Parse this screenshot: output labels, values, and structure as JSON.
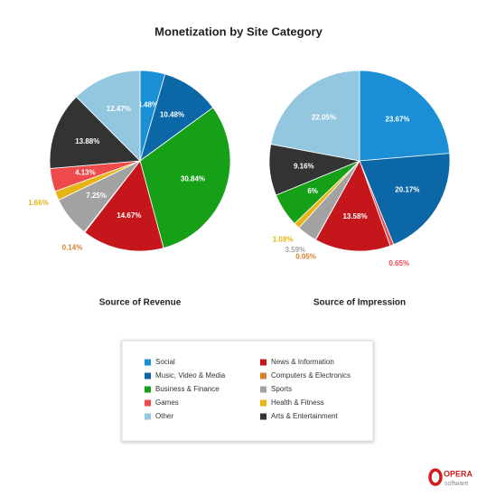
{
  "title": "Monetization by Site Category",
  "legend": [
    {
      "name": "Social",
      "color": "#1a8fd6"
    },
    {
      "name": "Music, Video & Media",
      "color": "#0b67a6"
    },
    {
      "name": "Business & Finance",
      "color": "#16a018"
    },
    {
      "name": "Games",
      "color": "#ee4a4c"
    },
    {
      "name": "Other",
      "color": "#93c6df"
    },
    {
      "name": "News & Information",
      "color": "#c5161c"
    },
    {
      "name": "Computers & Electronics",
      "color": "#d8812c"
    },
    {
      "name": "Sports",
      "color": "#a2a2a2"
    },
    {
      "name": "Health & Fitness",
      "color": "#e6b415"
    },
    {
      "name": "Arts & Entertainment",
      "color": "#333333"
    }
  ],
  "chart_data": [
    {
      "type": "pie",
      "subtitle": "Source of Revenue",
      "categories": [
        "Social",
        "Music, Video & Media",
        "Business & Finance",
        "News & Information",
        "Computers & Electronics",
        "Sports",
        "Health & Fitness",
        "Games",
        "Arts & Entertainment",
        "Other"
      ],
      "values": [
        4.48,
        10.48,
        30.84,
        14.67,
        0.14,
        7.25,
        1.66,
        4.13,
        13.88,
        12.47
      ],
      "value_labels": [
        "4.48%",
        "10.48%",
        "30.84%",
        "14.67%",
        "0.14%",
        "7.25%",
        "1.66%",
        "4.13%",
        "13.88%",
        "12.47%"
      ]
    },
    {
      "type": "pie",
      "subtitle": "Source of Impression",
      "categories": [
        "Social",
        "Music, Video & Media",
        "Games",
        "News & Information",
        "Computers & Electronics",
        "Sports",
        "Health & Fitness",
        "Business & Finance",
        "Arts & Entertainment",
        "Other"
      ],
      "values": [
        23.67,
        20.17,
        0.65,
        13.58,
        0.05,
        3.59,
        1.08,
        6,
        9.16,
        22.05
      ],
      "value_labels": [
        "23.67%",
        "20.17%",
        "0.65%",
        "13.58%",
        "0.05%",
        "3.59%",
        "1.08%",
        "6%",
        "9.16%",
        "22.05%"
      ]
    }
  ],
  "logo": {
    "brand": "OPERA",
    "sub": "software"
  }
}
